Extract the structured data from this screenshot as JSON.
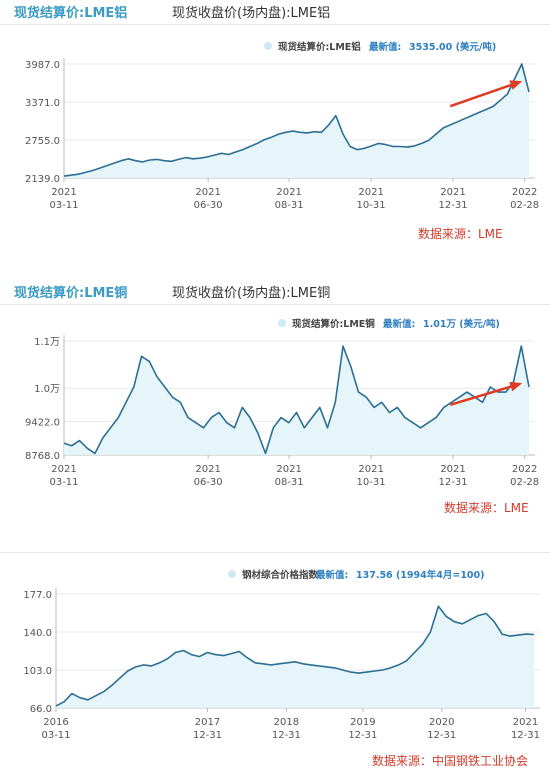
{
  "charts": [
    {
      "header_title": "现货结算价:LME铝",
      "header_subtitle": "现货收盘价(场内盘):LME铝",
      "source": "数据来源：LME",
      "chart_data": {
        "type": "area",
        "legend_label": "现货结算价:LME铝",
        "latest_label": "最新值:",
        "latest_value": "3535.00 (美元/吨)",
        "y_ticks": [
          "3987.0",
          "3371.0",
          "2755.0",
          "2139.0"
        ],
        "y_tick_values": [
          3987,
          3371,
          2755,
          2139
        ],
        "ylim": [
          2139,
          3987
        ],
        "x_ticks": [
          [
            "2021",
            "03-11"
          ],
          [
            "2021",
            "06-30"
          ],
          [
            "2021",
            "08-31"
          ],
          [
            "2021",
            "10-31"
          ],
          [
            "2021",
            "12-31"
          ],
          [
            "2022",
            "02-28"
          ]
        ],
        "x_tick_positions": [
          0,
          0.306,
          0.478,
          0.652,
          0.826,
          0.978
        ],
        "values": [
          2170,
          2185,
          2200,
          2230,
          2260,
          2300,
          2340,
          2380,
          2420,
          2450,
          2420,
          2400,
          2430,
          2440,
          2420,
          2410,
          2440,
          2470,
          2450,
          2460,
          2480,
          2510,
          2540,
          2520,
          2560,
          2600,
          2650,
          2700,
          2760,
          2800,
          2850,
          2880,
          2900,
          2880,
          2870,
          2890,
          2880,
          3000,
          3150,
          2850,
          2650,
          2600,
          2620,
          2660,
          2700,
          2680,
          2650,
          2650,
          2640,
          2660,
          2700,
          2750,
          2850,
          2950,
          3000,
          3050,
          3100,
          3150,
          3200,
          3250,
          3300,
          3400,
          3500,
          3750,
          3987,
          3535
        ],
        "arrow": {
          "from": [
            0.82,
            0.37
          ],
          "to": [
            0.99,
            0.15
          ]
        }
      }
    },
    {
      "header_title": "现货结算价:LME铜",
      "header_subtitle": "现货收盘价(场内盘):LME铜",
      "source": "数据来源：LME",
      "chart_data": {
        "type": "area",
        "legend_label": "现货结算价:LME铜",
        "latest_label": "最新值:",
        "latest_value": "1.01万 (美元/吨)",
        "y_ticks": [
          "1.1万",
          "1.0万",
          "9422.0",
          "8768.0"
        ],
        "y_tick_values": [
          11000,
          10076,
          9422,
          8768
        ],
        "ylim": [
          8768,
          11000
        ],
        "x_ticks": [
          [
            "2021",
            "03-11"
          ],
          [
            "2021",
            "06-30"
          ],
          [
            "2021",
            "08-31"
          ],
          [
            "2021",
            "10-31"
          ],
          [
            "2021",
            "12-31"
          ],
          [
            "2022",
            "02-28"
          ]
        ],
        "x_tick_positions": [
          0,
          0.306,
          0.478,
          0.652,
          0.826,
          0.978
        ],
        "values": [
          9000,
          8950,
          9050,
          8900,
          8800,
          9100,
          9300,
          9500,
          9800,
          10100,
          10700,
          10600,
          10300,
          10100,
          9900,
          9800,
          9500,
          9400,
          9300,
          9500,
          9600,
          9400,
          9300,
          9700,
          9500,
          9200,
          8800,
          9300,
          9500,
          9400,
          9600,
          9300,
          9500,
          9700,
          9300,
          9800,
          10900,
          10500,
          10000,
          9900,
          9700,
          9800,
          9600,
          9700,
          9500,
          9400,
          9300,
          9400,
          9500,
          9700,
          9800,
          9900,
          10000,
          9900,
          9800,
          10100,
          10000,
          10000,
          10200,
          10900,
          10100
        ],
        "arrow": {
          "from": [
            0.82,
            0.56
          ],
          "to": [
            0.99,
            0.37
          ]
        }
      }
    },
    {
      "header_title": "",
      "header_subtitle": "",
      "source": "数据来源：中国钢铁工业协会",
      "chart_data": {
        "type": "area",
        "legend_label": "钢材综合价格指数",
        "latest_label": "最新值:",
        "latest_value": "137.56 (1994年4月=100)",
        "y_ticks": [
          "177.0",
          "140.0",
          "103.0",
          "66.0"
        ],
        "y_tick_values": [
          177,
          140,
          103,
          66
        ],
        "ylim": [
          66,
          177
        ],
        "x_ticks": [
          [
            "2016",
            "03-11"
          ],
          [
            "2017",
            "12-31"
          ],
          [
            "2018",
            "12-31"
          ],
          [
            "2019",
            "12-31"
          ],
          [
            "2020",
            "12-31"
          ],
          [
            "2021",
            "12-31"
          ]
        ],
        "x_tick_positions": [
          0,
          0.313,
          0.476,
          0.634,
          0.797,
          0.97
        ],
        "values": [
          68,
          72,
          80,
          76,
          74,
          78,
          82,
          88,
          95,
          102,
          106,
          108,
          107,
          110,
          114,
          120,
          122,
          118,
          116,
          120,
          118,
          117,
          119,
          121,
          115,
          110,
          109,
          108,
          109,
          110,
          111,
          109,
          108,
          107,
          106,
          105,
          103,
          101,
          100,
          101,
          102,
          103,
          105,
          108,
          112,
          120,
          128,
          140,
          165,
          155,
          150,
          148,
          152,
          156,
          158,
          150,
          138,
          136,
          137,
          138,
          137.56
        ],
        "arrow": null
      }
    }
  ]
}
